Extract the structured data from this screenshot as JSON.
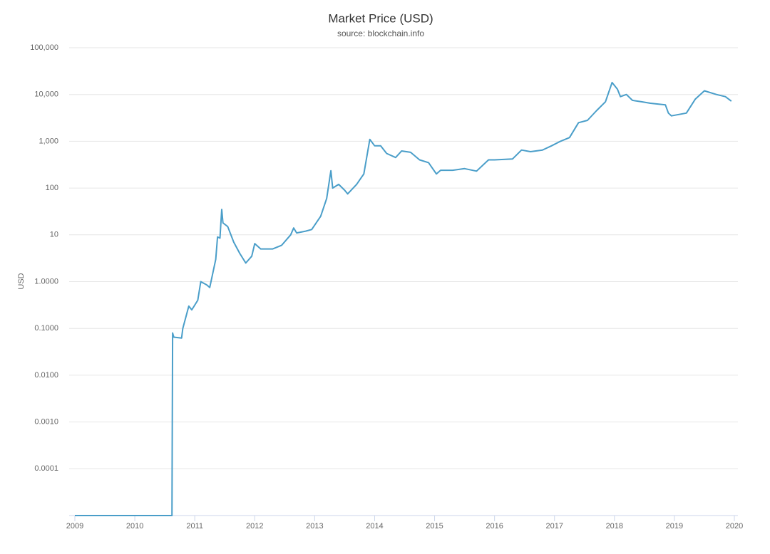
{
  "chart_data": {
    "type": "line",
    "title": "Market Price (USD)",
    "subtitle": "source: blockchain.info",
    "y_label": "USD",
    "log_y": true,
    "grid": true,
    "xlim": [
      2009,
      2020
    ],
    "xticks": [
      2009,
      2010,
      2011,
      2012,
      2013,
      2014,
      2015,
      2016,
      2017,
      2018,
      2019,
      2020
    ],
    "ylim": [
      1e-05,
      100000
    ],
    "yticks": [
      0.0001,
      {
        "value": 0.001,
        "label": "0.0010"
      },
      {
        "value": 0.01,
        "label": "0.0100"
      },
      {
        "value": 0.1,
        "label": "0.1000"
      },
      {
        "value": 1,
        "label": "1.0000"
      },
      10,
      100,
      {
        "value": 1000,
        "label": "1,000"
      },
      {
        "value": 10000,
        "label": "10,000"
      },
      {
        "value": 100000,
        "label": "100,000"
      }
    ],
    "x": [
      2009.0,
      2010.62,
      2010.63,
      2010.65,
      2010.78,
      2010.8,
      2010.9,
      2010.95,
      2011.05,
      2011.1,
      2011.2,
      2011.25,
      2011.35,
      2011.38,
      2011.42,
      2011.45,
      2011.47,
      2011.55,
      2011.65,
      2011.75,
      2011.85,
      2011.95,
      2012.0,
      2012.1,
      2012.3,
      2012.45,
      2012.6,
      2012.65,
      2012.7,
      2012.85,
      2012.95,
      2013.1,
      2013.2,
      2013.27,
      2013.3,
      2013.4,
      2013.5,
      2013.55,
      2013.7,
      2013.82,
      2013.92,
      2014.0,
      2014.1,
      2014.2,
      2014.35,
      2014.45,
      2014.6,
      2014.75,
      2014.9,
      2015.03,
      2015.1,
      2015.3,
      2015.5,
      2015.7,
      2015.9,
      2016.0,
      2016.3,
      2016.45,
      2016.6,
      2016.8,
      2016.95,
      2017.1,
      2017.25,
      2017.4,
      2017.55,
      2017.7,
      2017.85,
      2017.96,
      2018.05,
      2018.1,
      2018.2,
      2018.3,
      2018.45,
      2018.6,
      2018.85,
      2018.9,
      2018.95,
      2019.2,
      2019.35,
      2019.5,
      2019.7,
      2019.85,
      2019.95
    ],
    "series": [
      {
        "name": "Market Price",
        "color": "#4a9ec9",
        "values": [
          1e-05,
          1e-05,
          0.08,
          0.065,
          0.062,
          0.1,
          0.3,
          0.25,
          0.4,
          1.0,
          0.85,
          0.75,
          3,
          9,
          8.5,
          35,
          18,
          15,
          7,
          4,
          2.5,
          3.5,
          6.5,
          5,
          5,
          6,
          10,
          14,
          11,
          12,
          13,
          25,
          60,
          235,
          100,
          120,
          90,
          75,
          120,
          200,
          1100,
          800,
          800,
          550,
          450,
          620,
          580,
          400,
          350,
          200,
          240,
          240,
          260,
          230,
          400,
          400,
          420,
          650,
          600,
          650,
          800,
          1000,
          1200,
          2500,
          2800,
          4500,
          7000,
          18000,
          13000,
          9000,
          10000,
          7500,
          7000,
          6500,
          6000,
          4000,
          3500,
          4000,
          8000,
          12000,
          10000,
          9000,
          7200
        ]
      }
    ]
  }
}
